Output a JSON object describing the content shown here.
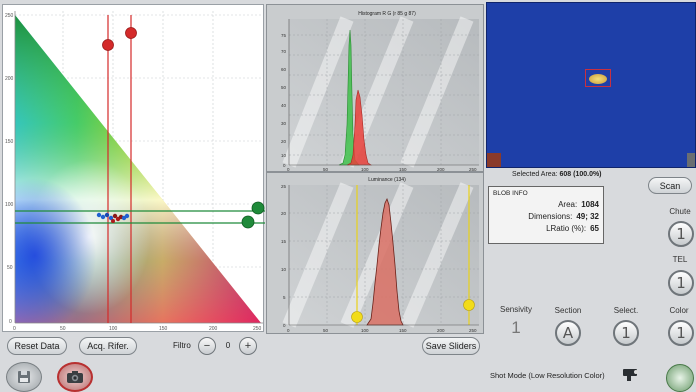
{
  "left_plot": {
    "y_ticks": [
      "250",
      "200",
      "150",
      "100",
      "50",
      "0"
    ],
    "x_ticks": [
      "0",
      "50",
      "100",
      "150",
      "200",
      "250"
    ]
  },
  "histogram_rgb": {
    "title": "Histogram R G (r 85 g 87)",
    "y_ticks": [
      "75",
      "70",
      "60",
      "50",
      "40",
      "30",
      "20",
      "10",
      "0"
    ],
    "x_ticks": [
      "0",
      "50",
      "100",
      "150",
      "200",
      "250"
    ]
  },
  "histogram_lum": {
    "title": "Luminance (134)",
    "y_ticks": [
      "25",
      "20",
      "15",
      "10",
      "5",
      "0"
    ],
    "x_ticks": [
      "0",
      "50",
      "100",
      "150",
      "200",
      "250"
    ]
  },
  "toolbar": {
    "reset_data": "Reset Data",
    "acq_rifer": "Acq. Rifer.",
    "filtro_label": "Filtro",
    "filtro_minus": "−",
    "filtro_value": "0",
    "filtro_plus": "+",
    "save_sliders": "Save Sliders"
  },
  "right": {
    "selected_area_label": "Selected Area:",
    "selected_area_value": "608 (100.0%)",
    "scan": "Scan",
    "blob_info_title": "BLOB INFO",
    "area_label": "Area:",
    "area_value": "1084",
    "dimensions_label": "Dimensions:",
    "dimensions_value": "49; 32",
    "lratio_label": "LRatio (%):",
    "lratio_value": "65",
    "chute_label": "Chute",
    "chute_value": "1",
    "tel_label": "TEL",
    "tel_value": "1",
    "sensivity_label": "Sensivity",
    "sensivity_value": "1",
    "section_label": "Section",
    "section_value": "A",
    "select_label": "Select.",
    "select_value": "1",
    "color_label": "Color",
    "color_value": "1",
    "shot_mode": "Shot Mode (Low Resolution Color)"
  },
  "colors": {
    "red_slider": "#d42a2a",
    "green_slider": "#1f8a3a",
    "yellow_slider": "#e8d21a",
    "blue_view": "#1e3fa8"
  }
}
